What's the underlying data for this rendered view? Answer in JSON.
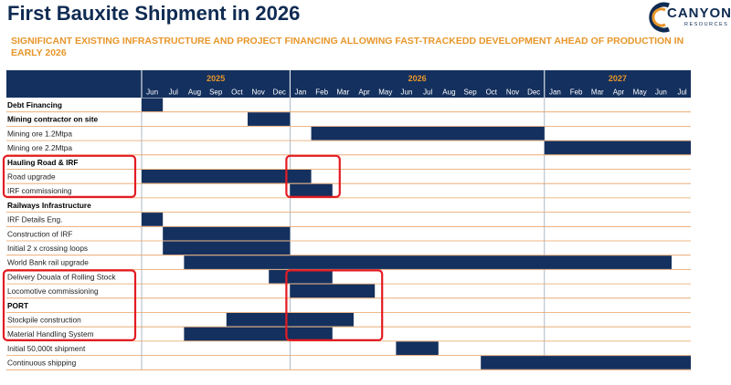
{
  "header": {
    "title": "First Bauxite Shipment in 2026",
    "subtitle": "SIGNIFICANT EXISTING INFRASTRUCTURE AND PROJECT FINANCING ALLOWING FAST-TRACKEDD DEVELOPMENT AHEAD OF PRODUCTION IN EARLY 2026",
    "logo_word": "CANYON",
    "logo_sub": "RESOURCES"
  },
  "colors": {
    "navy": "#14305e",
    "orange": "#e8962a",
    "highlight": "#e31b23",
    "grid": "#e8a060"
  },
  "chart_data": {
    "type": "gantt",
    "title": "First Bauxite Shipment in 2026",
    "time_axis": {
      "start": "2025-06",
      "years": [
        {
          "label": "2025",
          "start": "2025-06",
          "end": "2025-12"
        },
        {
          "label": "2026",
          "start": "2026-01",
          "end": "2026-12"
        },
        {
          "label": "2027",
          "start": "2027-01",
          "end": "2027-07"
        }
      ],
      "months": [
        "Jun",
        "Jul",
        "Aug",
        "Sep",
        "Oct",
        "Nov",
        "Dec",
        "Jan",
        "Feb",
        "Mar",
        "Apr",
        "May",
        "Jun",
        "Jul",
        "Aug",
        "Sep",
        "Oct",
        "Nov",
        "Dec",
        "Jan",
        "Feb",
        "Mar",
        "Apr",
        "May",
        "Jun",
        "Jul"
      ]
    },
    "rows": [
      {
        "label": "Debt Financing",
        "header": true,
        "start": "2025-06",
        "end": "2025-06"
      },
      {
        "label": "Mining contractor on site",
        "header": true,
        "start": "2025-11",
        "end": "2025-12"
      },
      {
        "label": "Mining ore 1.2Mtpa",
        "header": false,
        "start": "2026-02",
        "end": "2026-12"
      },
      {
        "label": "Mining ore 2.2Mtpa",
        "header": false,
        "start": "2027-01",
        "end": "2027-07"
      },
      {
        "label": "Hauling Road & IRF",
        "header": true,
        "highlight": true
      },
      {
        "label": "Road upgrade",
        "header": false,
        "highlight": true,
        "start": "2025-06",
        "end": "2026-01"
      },
      {
        "label": "IRF commissioning",
        "header": false,
        "highlight": true,
        "start": "2026-01",
        "end": "2026-02"
      },
      {
        "label": "Railways Infrastructure",
        "header": true
      },
      {
        "label": "IRF Details Eng.",
        "header": false,
        "start": "2025-06",
        "end": "2025-06"
      },
      {
        "label": "Construction of IRF",
        "header": false,
        "start": "2025-07",
        "end": "2025-12"
      },
      {
        "label": "Initial 2 x crossing loops",
        "header": false,
        "start": "2025-07",
        "end": "2025-12"
      },
      {
        "label": "World Bank rail upgrade",
        "header": false,
        "start": "2025-08",
        "end": "2027-06"
      },
      {
        "label": "Delivery Douala of Rolling Stock",
        "header": false,
        "highlight": true,
        "start": "2025-12",
        "end": "2026-02"
      },
      {
        "label": "Locomotive commissioning",
        "header": false,
        "highlight": true,
        "start": "2026-01",
        "end": "2026-04"
      },
      {
        "label": "PORT",
        "header": true,
        "highlight": true
      },
      {
        "label": "Stockpile construction",
        "header": false,
        "highlight": true,
        "start": "2025-10",
        "end": "2026-03"
      },
      {
        "label": "Material Handling System",
        "header": false,
        "highlight": true,
        "start": "2025-08",
        "end": "2026-02"
      },
      {
        "label": "Initial 50,000t shipment",
        "header": false,
        "start": "2026-06",
        "end": "2026-07"
      },
      {
        "label": "Continuous shipping",
        "header": false,
        "start": "2026-10",
        "end": "2027-07"
      }
    ]
  }
}
